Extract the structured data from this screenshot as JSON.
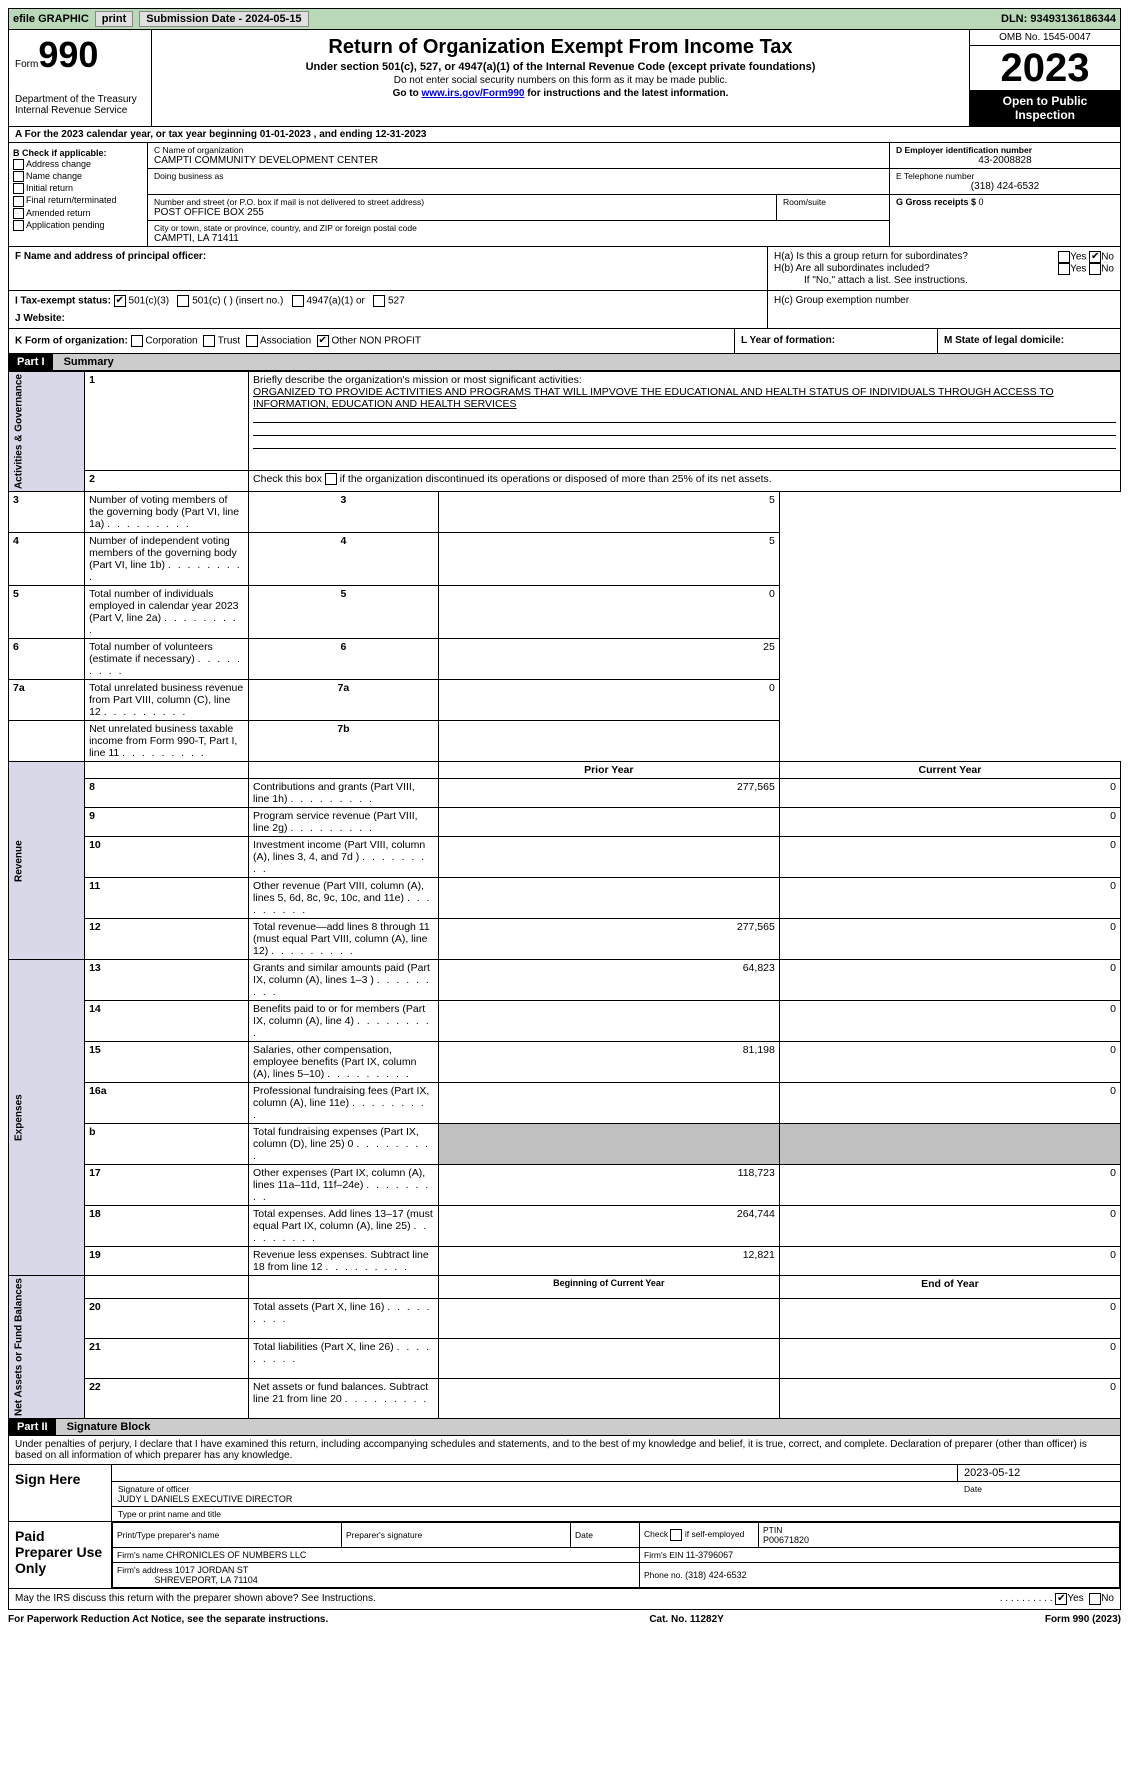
{
  "topbar": {
    "efile": "efile GRAPHIC",
    "print": "print",
    "submission_label": "Submission Date - ",
    "submission_date": "2024-05-15",
    "dln_label": "DLN: ",
    "dln": "93493136186344"
  },
  "header": {
    "form_label": "Form",
    "form_num": "990",
    "dept": "Department of the Treasury\nInternal Revenue Service",
    "title": "Return of Organization Exempt From Income Tax",
    "sub": "Under section 501(c), 527, or 4947(a)(1) of the Internal Revenue Code (except private foundations)",
    "line2": "Do not enter social security numbers on this form as it may be made public.",
    "line3_pre": "Go to ",
    "line3_link": "www.irs.gov/Form990",
    "line3_post": " for instructions and the latest information.",
    "omb": "OMB No. 1545-0047",
    "year": "2023",
    "open": "Open to Public Inspection"
  },
  "rowA": {
    "text": "A    For the 2023 calendar year, or tax year beginning 01-01-2023   , and ending 12-31-2023"
  },
  "B": {
    "label": "B Check if applicable:",
    "items": [
      "Address change",
      "Name change",
      "Initial return",
      "Final return/terminated",
      "Amended return",
      "Application pending"
    ]
  },
  "C": {
    "name_label": "C Name of organization",
    "name": "CAMPTI COMMUNITY DEVELOPMENT CENTER",
    "dba_label": "Doing business as",
    "addr_label": "Number and street (or P.O. box if mail is not delivered to street address)",
    "room_label": "Room/suite",
    "addr": "POST OFFICE BOX 255",
    "city_label": "City or town, state or province, country, and ZIP or foreign postal code",
    "city": "CAMPTI, LA  71411"
  },
  "D": {
    "label": "D Employer identification number",
    "val": "43-2008828",
    "E_label": "E Telephone number",
    "E_val": "(318) 424-6532",
    "G_label": "G Gross receipts $ ",
    "G_val": "0"
  },
  "F": {
    "label": "F  Name and address of principal officer:"
  },
  "H": {
    "a": "H(a)  Is this a group return for subordinates?",
    "b": "H(b)  Are all subordinates included?",
    "b_note": "If \"No,\" attach a list. See instructions.",
    "c": "H(c)  Group exemption number ",
    "yes": "Yes",
    "no": "No"
  },
  "I": {
    "label": "I    Tax-exempt status:",
    "opts": [
      "501(c)(3)",
      "501(c) (  ) (insert no.)",
      "4947(a)(1) or",
      "527"
    ]
  },
  "J": {
    "label": "J    Website: "
  },
  "K": {
    "label": "K Form of organization:",
    "opts": [
      "Corporation",
      "Trust",
      "Association",
      "Other"
    ],
    "other_val": "NON PROFIT",
    "L": "L Year of formation:",
    "M": "M State of legal domicile:"
  },
  "parts": {
    "p1": "Part I",
    "p1_title": "Summary",
    "p2": "Part II",
    "p2_title": "Signature Block"
  },
  "summary": {
    "q1": "Briefly describe the organization's mission or most significant activities:",
    "mission": "ORGANIZED TO PROVIDE ACTIVITIES AND PROGRAMS THAT WILL IMPVOVE THE EDUCATIONAL AND HEALTH STATUS OF INDIVIDUALS THROUGH ACCESS TO INFORMATION, EDUCATION AND HEALTH SERVICES",
    "q2": "Check this box      if the organization discontinued its operations or disposed of more than 25% of its net assets.",
    "rows_gov": [
      {
        "n": "3",
        "t": "Number of voting members of the governing body (Part VI, line 1a)",
        "k": "3",
        "v": "5"
      },
      {
        "n": "4",
        "t": "Number of independent voting members of the governing body (Part VI, line 1b)",
        "k": "4",
        "v": "5"
      },
      {
        "n": "5",
        "t": "Total number of individuals employed in calendar year 2023 (Part V, line 2a)",
        "k": "5",
        "v": "0"
      },
      {
        "n": "6",
        "t": "Total number of volunteers (estimate if necessary)",
        "k": "6",
        "v": "25"
      },
      {
        "n": "7a",
        "t": "Total unrelated business revenue from Part VIII, column (C), line 12",
        "k": "7a",
        "v": "0"
      },
      {
        "n": "",
        "t": "Net unrelated business taxable income from Form 990-T, Part I, line 11",
        "k": "7b",
        "v": ""
      }
    ],
    "prior": "Prior Year",
    "current": "Current Year",
    "rows_rev": [
      {
        "n": "8",
        "t": "Contributions and grants (Part VIII, line 1h)",
        "p": "277,565",
        "c": "0"
      },
      {
        "n": "9",
        "t": "Program service revenue (Part VIII, line 2g)",
        "p": "",
        "c": "0"
      },
      {
        "n": "10",
        "t": "Investment income (Part VIII, column (A), lines 3, 4, and 7d )",
        "p": "",
        "c": "0"
      },
      {
        "n": "11",
        "t": "Other revenue (Part VIII, column (A), lines 5, 6d, 8c, 9c, 10c, and 11e)",
        "p": "",
        "c": "0"
      },
      {
        "n": "12",
        "t": "Total revenue—add lines 8 through 11 (must equal Part VIII, column (A), line 12)",
        "p": "277,565",
        "c": "0"
      }
    ],
    "rows_exp": [
      {
        "n": "13",
        "t": "Grants and similar amounts paid (Part IX, column (A), lines 1–3 )",
        "p": "64,823",
        "c": "0"
      },
      {
        "n": "14",
        "t": "Benefits paid to or for members (Part IX, column (A), line 4)",
        "p": "",
        "c": "0"
      },
      {
        "n": "15",
        "t": "Salaries, other compensation, employee benefits (Part IX, column (A), lines 5–10)",
        "p": "81,198",
        "c": "0"
      },
      {
        "n": "16a",
        "t": "Professional fundraising fees (Part IX, column (A), line 11e)",
        "p": "",
        "c": "0"
      },
      {
        "n": "b",
        "t": "Total fundraising expenses (Part IX, column (D), line 25) 0",
        "p": "GRAY",
        "c": "GRAY"
      },
      {
        "n": "17",
        "t": "Other expenses (Part IX, column (A), lines 11a–11d, 11f–24e)",
        "p": "118,723",
        "c": "0"
      },
      {
        "n": "18",
        "t": "Total expenses. Add lines 13–17 (must equal Part IX, column (A), line 25)",
        "p": "264,744",
        "c": "0"
      },
      {
        "n": "19",
        "t": "Revenue less expenses. Subtract line 18 from line 12",
        "p": "12,821",
        "c": "0"
      }
    ],
    "begin": "Beginning of Current Year",
    "end": "End of Year",
    "rows_net": [
      {
        "n": "20",
        "t": "Total assets (Part X, line 16)",
        "p": "",
        "c": "0"
      },
      {
        "n": "21",
        "t": "Total liabilities (Part X, line 26)",
        "p": "",
        "c": "0"
      },
      {
        "n": "22",
        "t": "Net assets or fund balances. Subtract line 21 from line 20",
        "p": "",
        "c": "0"
      }
    ],
    "side_labels": {
      "gov": "Activities & Governance",
      "rev": "Revenue",
      "exp": "Expenses",
      "net": "Net Assets or Fund Balances"
    }
  },
  "sig": {
    "penalties": "Under penalties of perjury, I declare that I have examined this return, including accompanying schedules and statements, and to the best of my knowledge and belief, it is true, correct, and complete. Declaration of preparer (other than officer) is based on all information of which preparer has any knowledge.",
    "sign_here": "Sign Here",
    "date": "2023-05-12",
    "sig_officer": "Signature of officer",
    "date_label": "Date",
    "officer": "JUDY L DANIELS  EXECUTIVE DIRECTOR",
    "type_name": "Type or print name and title",
    "paid": "Paid Preparer Use Only",
    "pt_name_label": "Print/Type preparer's name",
    "pp_sig": "Preparer's signature",
    "check_self": "Check      if self-employed",
    "ptin_label": "PTIN",
    "ptin": "P00671820",
    "firm_name_label": "Firm's name   ",
    "firm_name": "CHRONICLES OF NUMBERS LLC",
    "firm_ein_label": "Firm's EIN  ",
    "firm_ein": "11-3796067",
    "firm_addr_label": "Firm's address ",
    "firm_addr": "1017 JORDAN ST",
    "firm_city": "SHREVEPORT, LA  71104",
    "phone_label": "Phone no. ",
    "phone": "(318) 424-6532",
    "may": "May the IRS discuss this return with the preparer shown above? See Instructions.",
    "yes": "Yes",
    "no": "No"
  },
  "footer": {
    "left": "For Paperwork Reduction Act Notice, see the separate instructions.",
    "mid": "Cat. No. 11282Y",
    "right": "Form 990 (2023)"
  }
}
